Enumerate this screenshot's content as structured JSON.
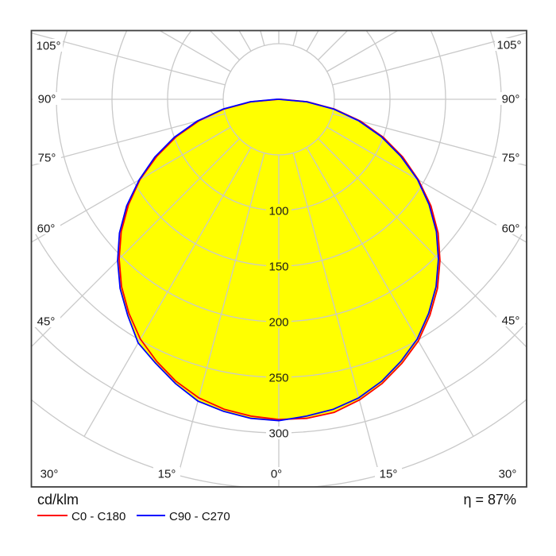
{
  "page": {
    "background": "#ffffff"
  },
  "legend": {
    "title": "cd/klm",
    "items": [
      {
        "label": "C0 - C180",
        "color": "#ff0000"
      },
      {
        "label": "C90 - C270",
        "color": "#0000ff"
      }
    ]
  },
  "efficiency_label": "η = 87%",
  "chart_data": {
    "type": "polar_intensity",
    "units": "cd/klm",
    "fill_color": "#ffff00",
    "grid_color": "#c9c9c9",
    "border_color": "#3f3f3f",
    "text_color": "#1a1a1a",
    "efficiency": "87%",
    "gamma_deg": [
      0,
      5,
      10,
      15,
      20,
      25,
      30,
      35,
      40,
      45,
      50,
      55,
      60,
      65,
      70,
      75,
      80,
      85,
      90,
      95,
      100,
      105
    ],
    "series": [
      {
        "name": "C0 - C180",
        "color": "#ff0000",
        "values_right": [
          288,
          288,
          286,
          280,
          272,
          262,
          251,
          237,
          222,
          205,
          187,
          167,
          145,
          123,
          100,
          76,
          51,
          26,
          2,
          0,
          0,
          0
        ],
        "values_left": [
          288,
          286,
          283,
          278,
          270,
          260,
          249,
          235,
          220,
          203,
          185,
          165,
          144,
          121,
          98,
          74,
          50,
          25,
          0,
          0,
          0,
          0
        ]
      },
      {
        "name": "C90 - C270",
        "color": "#0000ff",
        "values_right": [
          289,
          286,
          283,
          278,
          270,
          260,
          249,
          235,
          220,
          203,
          185,
          165,
          144,
          121,
          98,
          74,
          50,
          25,
          0,
          0,
          0,
          0
        ],
        "values_left": [
          289,
          288,
          285,
          281,
          272,
          262,
          253,
          237,
          222,
          205,
          187,
          167,
          145,
          123,
          100,
          76,
          51,
          26,
          2,
          0,
          0,
          0
        ]
      }
    ],
    "radial_ring_step": 50,
    "radial_max": 350,
    "radial_ticks": [
      100,
      150,
      200,
      250,
      300
    ],
    "radial_tick_labels": [
      "100",
      "150",
      "200",
      "250",
      "300"
    ],
    "angle_step_deg": 15,
    "angle_labels": {
      "left": [
        "105°",
        "90°",
        "75°",
        "60°",
        "45°"
      ],
      "right": [
        "105°",
        "90°",
        "75°",
        "60°",
        "45°"
      ],
      "bottom": [
        "30°",
        "15°",
        "0°",
        "15°",
        "30°"
      ]
    }
  }
}
